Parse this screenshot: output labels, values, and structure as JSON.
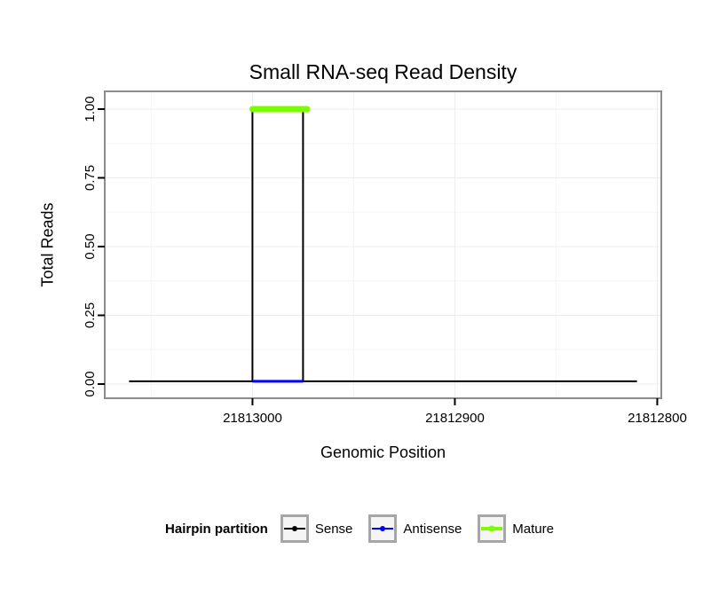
{
  "chart_data": {
    "type": "line",
    "title": "Small RNA-seq Read Density",
    "xlabel": "Genomic Position",
    "ylabel": "Total Reads",
    "x_axis": {
      "reversed": true,
      "ticks": [
        21813000,
        21812900,
        21812800
      ],
      "tick_labels": [
        "21813000",
        "21812900",
        "21812800"
      ],
      "minor_ticks": [
        21813050,
        21812950,
        21812850
      ],
      "range_left_to_right": [
        21813073,
        21812798
      ]
    },
    "y_axis": {
      "ticks": [
        0,
        0.25,
        0.5,
        0.75,
        1
      ],
      "tick_labels": [
        "0.00",
        "0.25",
        "0.50",
        "0.75",
        "1.00"
      ],
      "minor_ticks": [
        0.125,
        0.375,
        0.625,
        0.875
      ],
      "range": [
        -0.0516,
        1.0645
      ]
    },
    "series": [
      {
        "name": "Sense",
        "color": "#000000",
        "width": 2,
        "linecap": "butt",
        "points": [
          [
            21813061,
            0.01
          ],
          [
            21813000,
            0.01
          ],
          [
            21813000,
            1.0
          ],
          [
            21812975,
            1.0
          ],
          [
            21812975,
            0.01
          ],
          [
            21812810,
            0.01
          ]
        ]
      },
      {
        "name": "Antisense",
        "color": "#0000ff",
        "width": 3,
        "linecap": "butt",
        "points": [
          [
            21813000,
            0.01
          ],
          [
            21812975,
            0.01
          ]
        ]
      },
      {
        "name": "Mature",
        "color": "#7cfc00",
        "width": 7,
        "linecap": "round",
        "points": [
          [
            21813000,
            1.0
          ],
          [
            21812973,
            1.0
          ]
        ]
      }
    ],
    "legend": {
      "title": "Hairpin partition",
      "position": "bottom",
      "items": [
        {
          "label": "Sense",
          "color": "#000000",
          "line_width": 2,
          "point_radius": 3
        },
        {
          "label": "Antisense",
          "color": "#0000ff",
          "line_width": 2,
          "point_radius": 3
        },
        {
          "label": "Mature",
          "color": "#7cfc00",
          "line_width": 4,
          "point_radius": 3.5
        }
      ]
    },
    "style": {
      "background": "#ffffff",
      "panel_border_color": "#8c8c8c",
      "grid_major_color": "#ececec",
      "grid_minor_color": "#f5f5f5",
      "tick_color": "#000000",
      "tick_label_color": "#000000"
    }
  }
}
